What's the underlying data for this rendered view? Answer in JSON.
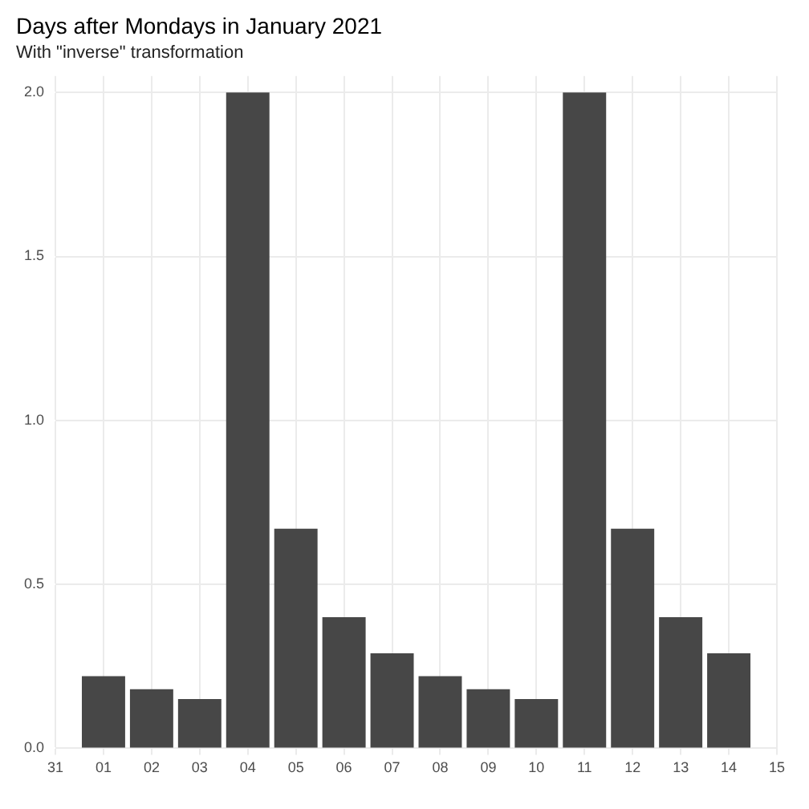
{
  "chart_data": {
    "type": "bar",
    "title": "Days after Mondays in January 2021",
    "subtitle": "With \"inverse\" transformation",
    "x": [
      "2021-01-01",
      "2021-01-02",
      "2021-01-03",
      "2021-01-04",
      "2021-01-05",
      "2021-01-06",
      "2021-01-07",
      "2021-01-08",
      "2021-01-09",
      "2021-01-10",
      "2021-01-11",
      "2021-01-12",
      "2021-01-13",
      "2021-01-14"
    ],
    "values": [
      0.22,
      0.18,
      0.15,
      2,
      0.67,
      0.4,
      0.29,
      0.22,
      0.18,
      0.15,
      2,
      0.67,
      0.4,
      0.29
    ],
    "color": "#474747",
    "xlim": [
      "2020-12-31",
      "2021-01-15"
    ],
    "xticks": [
      {
        "value": "2020-12-31",
        "label": "31"
      },
      {
        "value": "2021-01-01",
        "label": "01"
      },
      {
        "value": "2021-01-02",
        "label": "02"
      },
      {
        "value": "2021-01-03",
        "label": "03"
      },
      {
        "value": "2021-01-04",
        "label": "04"
      },
      {
        "value": "2021-01-05",
        "label": "05"
      },
      {
        "value": "2021-01-06",
        "label": "06"
      },
      {
        "value": "2021-01-07",
        "label": "07"
      },
      {
        "value": "2021-01-08",
        "label": "08"
      },
      {
        "value": "2021-01-09",
        "label": "09"
      },
      {
        "value": "2021-01-10",
        "label": "10"
      },
      {
        "value": "2021-01-11",
        "label": "11"
      },
      {
        "value": "2021-01-12",
        "label": "12"
      },
      {
        "value": "2021-01-13",
        "label": "13"
      },
      {
        "value": "2021-01-14",
        "label": "14"
      },
      {
        "value": "2021-01-15",
        "label": "15"
      }
    ],
    "ylim": [
      0,
      2.05
    ],
    "yticks": [
      {
        "value": 0,
        "label": "0.0"
      },
      {
        "value": 0.5,
        "label": "0.5"
      },
      {
        "value": 1,
        "label": "1.0"
      },
      {
        "value": 1.5,
        "label": "1.5"
      },
      {
        "value": 2,
        "label": "2.0"
      }
    ],
    "grid": true
  }
}
